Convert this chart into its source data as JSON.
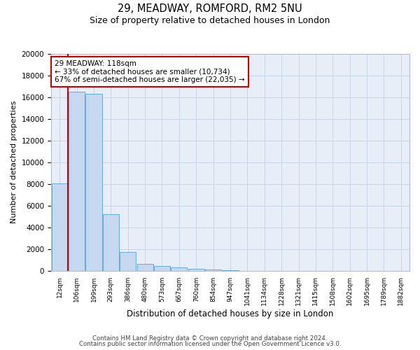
{
  "title_line1": "29, MEADWAY, ROMFORD, RM2 5NU",
  "title_line2": "Size of property relative to detached houses in London",
  "xlabel": "Distribution of detached houses by size in London",
  "ylabel": "Number of detached properties",
  "categories": [
    "12sqm",
    "106sqm",
    "199sqm",
    "293sqm",
    "386sqm",
    "480sqm",
    "573sqm",
    "667sqm",
    "760sqm",
    "854sqm",
    "947sqm",
    "1041sqm",
    "1134sqm",
    "1228sqm",
    "1321sqm",
    "1415sqm",
    "1508sqm",
    "1602sqm",
    "1695sqm",
    "1789sqm",
    "1882sqm"
  ],
  "bar_values": [
    8050,
    16500,
    16300,
    5200,
    1750,
    650,
    430,
    280,
    180,
    110,
    60,
    0,
    0,
    0,
    0,
    0,
    0,
    0,
    0,
    0,
    0
  ],
  "bar_color": "#c5d8f0",
  "bar_edgecolor": "#6aaad4",
  "grid_color": "#c8d4e8",
  "background_color": "#ffffff",
  "red_line_x": 0.5,
  "red_line_color": "#cc0000",
  "annotation_text": "29 MEADWAY: 118sqm\n← 33% of detached houses are smaller (10,734)\n67% of semi-detached houses are larger (22,035) →",
  "annotation_box_edgecolor": "#cc0000",
  "annotation_box_facecolor": "#ffffff",
  "ylim": [
    0,
    20000
  ],
  "yticks": [
    0,
    2000,
    4000,
    6000,
    8000,
    10000,
    12000,
    14000,
    16000,
    18000,
    20000
  ],
  "footer_line1": "Contains HM Land Registry data © Crown copyright and database right 2024.",
  "footer_line2": "Contains public sector information licensed under the Open Government Licence v3.0."
}
